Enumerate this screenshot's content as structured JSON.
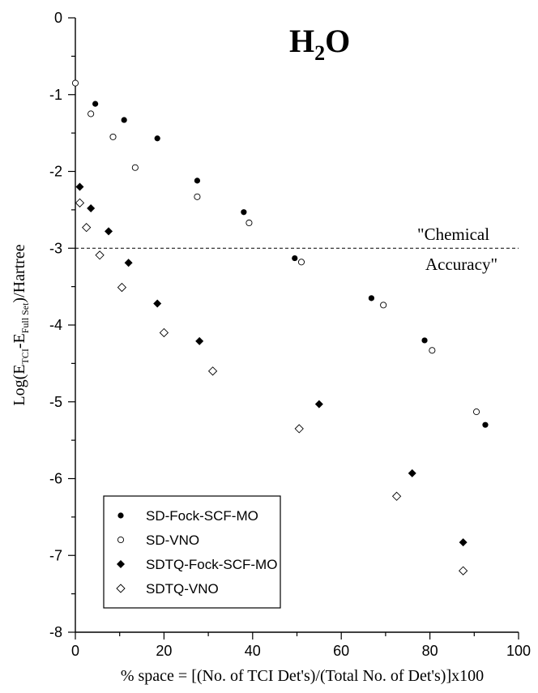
{
  "chart_data": {
    "type": "scatter",
    "title": "H2O",
    "title_parts": {
      "main_a": "H",
      "sub": "2",
      "main_b": "O"
    },
    "xlabel": "% space = [(No. of TCI Det's)/(Total No. of Det's)]x100",
    "ylabel": "Log(E TCI-E Full Set)/Hartree",
    "ylabel_parts": {
      "a": "Log(E",
      "sub1": "TCI",
      "b": "-E",
      "sub2": "Full Set",
      "c": ")/Hartree"
    },
    "xlim": [
      0,
      100
    ],
    "ylim": [
      -8,
      0
    ],
    "x_ticks": [
      0,
      20,
      40,
      60,
      80,
      100
    ],
    "y_ticks": [
      0,
      -1,
      -2,
      -3,
      -4,
      -5,
      -6,
      -7,
      -8
    ],
    "reference_line": {
      "y": -3,
      "style": "dashed",
      "label_line1": "\"Chemical",
      "label_line2": "Accuracy\""
    },
    "legend_position": "bottom-left",
    "series": [
      {
        "name": "SD-Fock-SCF-MO",
        "marker": "filled-circle",
        "color": "#000000",
        "points": [
          [
            4.5,
            -1.12
          ],
          [
            11,
            -1.33
          ],
          [
            18.5,
            -1.57
          ],
          [
            27.5,
            -2.12
          ],
          [
            38,
            -2.53
          ],
          [
            49.5,
            -3.13
          ],
          [
            66.8,
            -3.65
          ],
          [
            78.8,
            -4.2
          ],
          [
            92.5,
            -5.3
          ]
        ]
      },
      {
        "name": "SD-VNO",
        "marker": "open-circle",
        "color": "#000000",
        "points": [
          [
            0,
            -0.85
          ],
          [
            3.5,
            -1.25
          ],
          [
            8.5,
            -1.55
          ],
          [
            13.5,
            -1.95
          ],
          [
            27.5,
            -2.33
          ],
          [
            39.2,
            -2.67
          ],
          [
            51,
            -3.18
          ],
          [
            69.5,
            -3.74
          ],
          [
            80.5,
            -4.33
          ],
          [
            90.5,
            -5.13
          ]
        ]
      },
      {
        "name": "SDTQ-Fock-SCF-MO",
        "marker": "filled-diamond",
        "color": "#000000",
        "points": [
          [
            1,
            -2.2
          ],
          [
            3.5,
            -2.48
          ],
          [
            7.5,
            -2.78
          ],
          [
            12,
            -3.19
          ],
          [
            18.5,
            -3.72
          ],
          [
            28,
            -4.21
          ],
          [
            55,
            -5.03
          ],
          [
            76,
            -5.93
          ],
          [
            87.5,
            -6.83
          ]
        ]
      },
      {
        "name": "SDTQ-VNO",
        "marker": "open-diamond",
        "color": "#000000",
        "points": [
          [
            1,
            -2.41
          ],
          [
            2.5,
            -2.73
          ],
          [
            5.5,
            -3.09
          ],
          [
            10.5,
            -3.51
          ],
          [
            20,
            -4.1
          ],
          [
            31,
            -4.6
          ],
          [
            50.5,
            -5.35
          ],
          [
            72.5,
            -6.23
          ],
          [
            87.5,
            -7.2
          ]
        ]
      }
    ]
  }
}
